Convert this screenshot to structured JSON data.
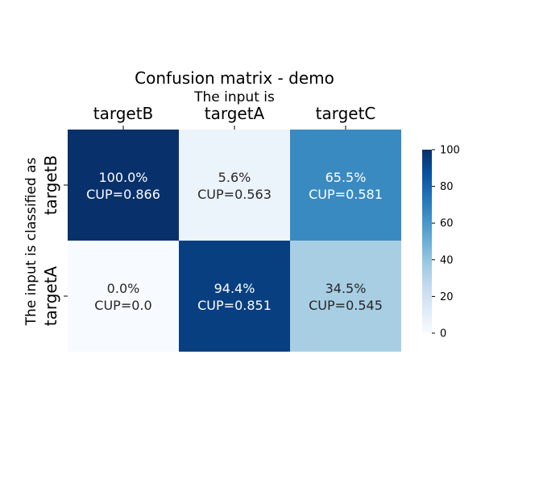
{
  "chart_data": {
    "type": "heatmap",
    "title": "Confusion matrix - demo",
    "xlabel": "The input is",
    "ylabel": "The input is classified as",
    "x_categories": [
      "targetB",
      "targetA",
      "targetC"
    ],
    "y_categories": [
      "targetB",
      "targetA"
    ],
    "values": [
      [
        100.0,
        5.6,
        65.5
      ],
      [
        0.0,
        94.4,
        34.5
      ]
    ],
    "cell_labels": [
      [
        [
          "100.0%",
          "CUP=0.866"
        ],
        [
          "5.6%",
          "CUP=0.563"
        ],
        [
          "65.5%",
          "CUP=0.581"
        ]
      ],
      [
        [
          "0.0%",
          "CUP=0.0"
        ],
        [
          "94.4%",
          "CUP=0.851"
        ],
        [
          "34.5%",
          "CUP=0.545"
        ]
      ]
    ],
    "colorbar": {
      "range": [
        0,
        100
      ],
      "ticks": [
        "0",
        "20",
        "40",
        "60",
        "80",
        "100"
      ],
      "colormap": "Blues"
    }
  }
}
